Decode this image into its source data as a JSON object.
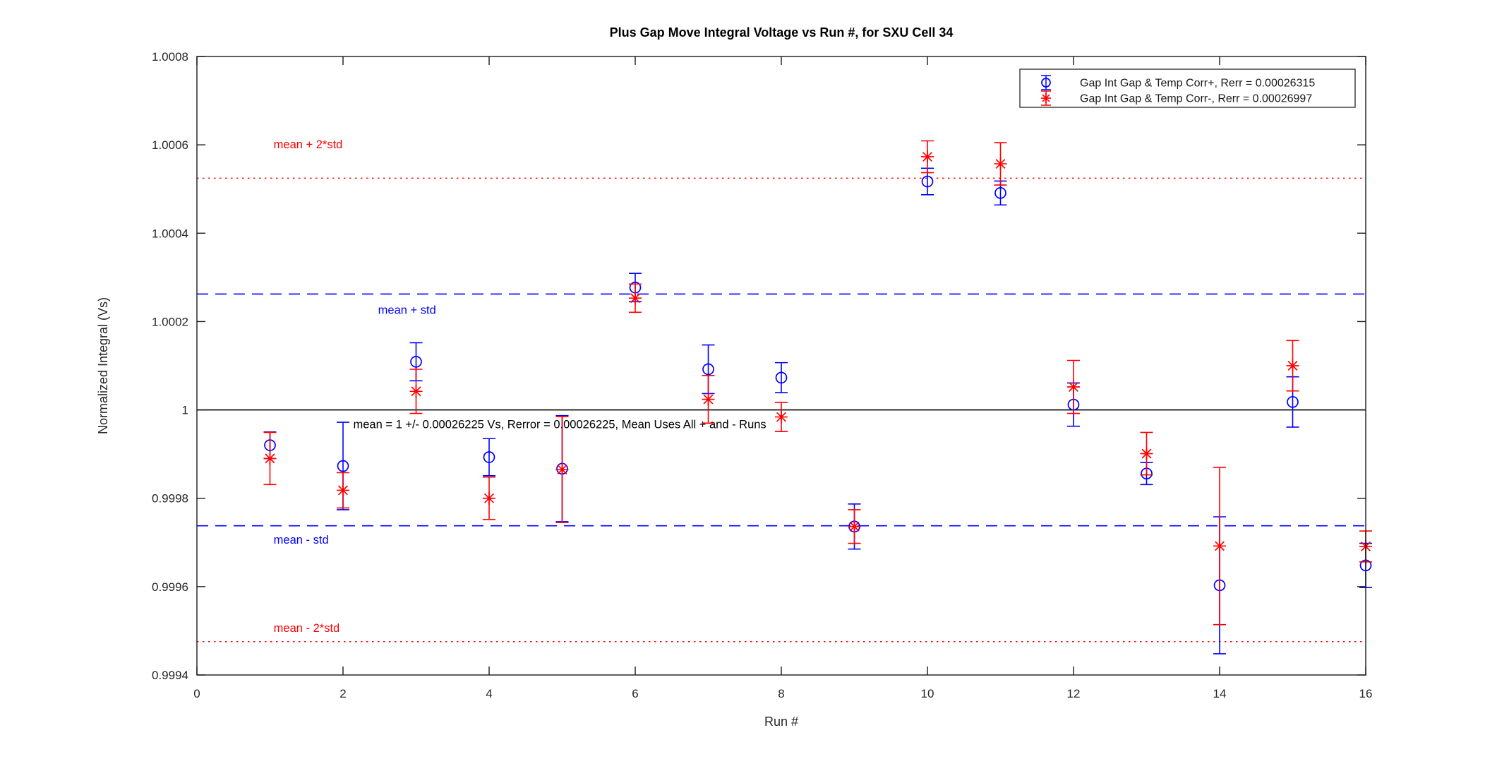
{
  "figure": {
    "background": "#ffffff"
  },
  "chart_data": {
    "type": "scatter",
    "subtype": "errorbar",
    "title": "Plus Gap Move Integral Voltage vs Run #, for SXU Cell 34",
    "xlabel": "Run #",
    "ylabel": "Normalized Integral (Vs)",
    "xlim": [
      0,
      16
    ],
    "ylim": [
      0.9994,
      1.0008
    ],
    "grid": false,
    "box": true,
    "xticks": {
      "values": [
        0,
        2,
        4,
        6,
        8,
        10,
        12,
        14,
        16
      ],
      "labels": [
        "0",
        "2",
        "4",
        "6",
        "8",
        "10",
        "12",
        "14",
        "16"
      ]
    },
    "yticks": {
      "values": [
        0.9994,
        0.9996,
        0.9998,
        1.0,
        1.0002,
        1.0004,
        1.0006,
        1.0008
      ],
      "labels": [
        "0.9994",
        "0.9996",
        "0.9998",
        "1",
        "1.0002",
        "1.0004",
        "1.0006",
        "1.0008"
      ]
    },
    "series": [
      {
        "name": "Gap Int Gap & Temp Corr+, Rerr = 0.00026315",
        "color": "#0000ff",
        "marker": "circle",
        "x": [
          1,
          2,
          3,
          4,
          5,
          6,
          7,
          8,
          9,
          10,
          11,
          12,
          13,
          14,
          15,
          16
        ],
        "y": [
          0.99992,
          0.999873,
          1.000109,
          0.999893,
          0.999867,
          1.000277,
          1.000092,
          1.000073,
          0.999736,
          1.000517,
          1.000491,
          1.000012,
          0.999856,
          0.999603,
          1.000018,
          0.999648
        ],
        "yerr": [
          3e-05,
          9.9e-05,
          4.3e-05,
          4.2e-05,
          0.00012,
          3.2e-05,
          5.5e-05,
          3.4e-05,
          5.1e-05,
          3e-05,
          2.7e-05,
          4.9e-05,
          2.5e-05,
          0.000155,
          5.7e-05,
          5e-05
        ]
      },
      {
        "name": "Gap Int Gap & Temp  Corr-, Rerr = 0.00026997",
        "color": "#ff0000",
        "marker": "asterisk",
        "x": [
          1,
          2,
          3,
          4,
          5,
          6,
          7,
          8,
          9,
          10,
          11,
          12,
          13,
          14,
          15,
          16
        ],
        "y": [
          0.99989,
          0.999818,
          1.000042,
          0.9998,
          0.999865,
          1.000253,
          1.000024,
          0.999984,
          0.999736,
          1.000573,
          1.000557,
          1.000052,
          0.999901,
          0.999692,
          1.0001,
          0.999691
        ],
        "yerr": [
          5.9e-05,
          4e-05,
          5e-05,
          4.8e-05,
          0.00012,
          3.2e-05,
          5.4e-05,
          3.3e-05,
          3.8e-05,
          3.6e-05,
          4.8e-05,
          6e-05,
          4.8e-05,
          0.000178,
          5.7e-05,
          3.5e-05
        ]
      }
    ],
    "reference_lines": [
      {
        "y": 1.0,
        "style": "solid",
        "color": "#000000",
        "name": "mean"
      },
      {
        "y": 1.00026225,
        "style": "dashed",
        "color": "#0000ff",
        "name": "mean-plus-std"
      },
      {
        "y": 0.99973775,
        "style": "dashed",
        "color": "#0000ff",
        "name": "mean-minus-std"
      },
      {
        "y": 1.0005245,
        "style": "dotted",
        "color": "#ff0000",
        "name": "mean-plus-2std"
      },
      {
        "y": 0.9994755,
        "style": "dotted",
        "color": "#ff0000",
        "name": "mean-minus-2std"
      }
    ],
    "annotations": [
      {
        "text": "mean + 2*std",
        "x": 1.05,
        "y": 1.000602,
        "color": "#ff0000"
      },
      {
        "text": "mean + std",
        "x": 2.48,
        "y": 1.000227,
        "color": "#0000ff"
      },
      {
        "text": "mean - std",
        "x": 1.05,
        "y": 0.999707,
        "color": "#0000ff"
      },
      {
        "text": "mean - 2*std",
        "x": 1.05,
        "y": 0.999507,
        "color": "#ff0000"
      },
      {
        "text": "mean = 1 +/- 0.00026225 Vs, Rerror = 0.00026225, Mean Uses All + and - Runs",
        "x": 2.14,
        "y": 0.999968,
        "color": "#000000"
      }
    ],
    "legend": {
      "position": "top-right",
      "entries": [
        {
          "label": "Gap Int Gap & Temp Corr+, Rerr = 0.00026315",
          "color": "#0000ff",
          "marker": "circle"
        },
        {
          "label": "Gap Int Gap & Temp  Corr-, Rerr = 0.00026997",
          "color": "#ff0000",
          "marker": "asterisk"
        }
      ]
    }
  }
}
